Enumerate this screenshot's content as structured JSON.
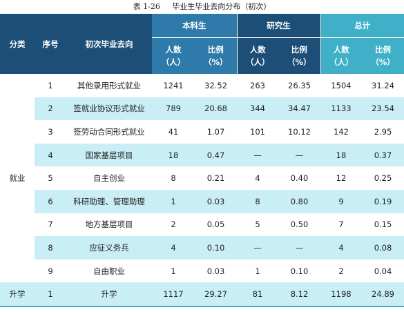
{
  "caption": {
    "number": "表 1-26",
    "title": "毕业生毕业去向分布（初次）"
  },
  "header": {
    "category": "分类",
    "seq": "序号",
    "destination": "初次毕业去向",
    "groups": [
      "本科生",
      "研究生",
      "总计"
    ],
    "count_label": "人数",
    "count_unit": "（人）",
    "ratio_label": "比例",
    "ratio_unit": "（%）"
  },
  "categories": {
    "employment": "就业",
    "further_study": "升学"
  },
  "rows": [
    [
      "1",
      "其他录用形式就业",
      "1241",
      "32.52",
      "263",
      "26.35",
      "1504",
      "31.24"
    ],
    [
      "2",
      "签就业协议形式就业",
      "789",
      "20.68",
      "344",
      "34.47",
      "1133",
      "23.54"
    ],
    [
      "3",
      "签劳动合同形式就业",
      "41",
      "1.07",
      "101",
      "10.12",
      "142",
      "2.95"
    ],
    [
      "4",
      "国家基层项目",
      "18",
      "0.47",
      "—",
      "—",
      "18",
      "0.37"
    ],
    [
      "5",
      "自主创业",
      "8",
      "0.21",
      "4",
      "0.40",
      "12",
      "0.25"
    ],
    [
      "6",
      "科研助理、管理助理",
      "1",
      "0.03",
      "8",
      "0.80",
      "9",
      "0.19"
    ],
    [
      "7",
      "地方基层项目",
      "2",
      "0.05",
      "5",
      "0.50",
      "7",
      "0.15"
    ],
    [
      "8",
      "应征义务兵",
      "4",
      "0.10",
      "—",
      "—",
      "4",
      "0.08"
    ],
    [
      "9",
      "自由职业",
      "1",
      "0.03",
      "1",
      "0.10",
      "2",
      "0.04"
    ]
  ],
  "further_row": [
    "1",
    "升学",
    "1117",
    "29.27",
    "81",
    "8.12",
    "1198",
    "24.89"
  ]
}
